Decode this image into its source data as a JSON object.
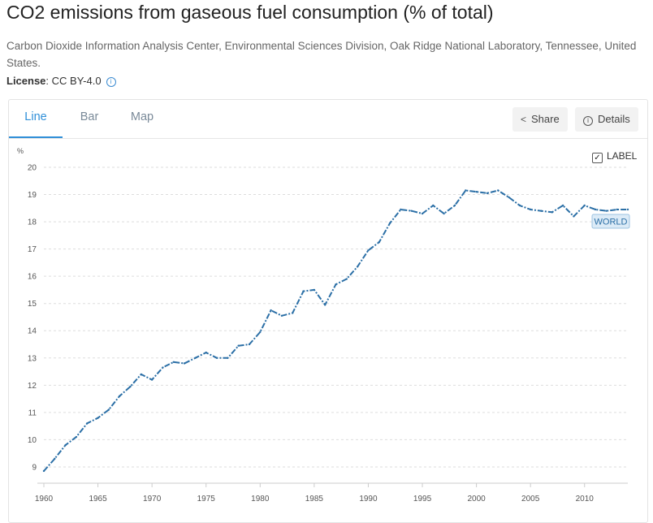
{
  "page": {
    "title": "CO2 emissions from gaseous fuel consumption (% of total)",
    "source": "Carbon Dioxide Information Analysis Center, Environmental Sciences Division, Oak Ridge National Laboratory, Tennessee, United States.",
    "license_label": "License",
    "license_value": ": CC BY-4.0"
  },
  "tabs": [
    {
      "label": "Line",
      "active": true
    },
    {
      "label": "Bar",
      "active": false
    },
    {
      "label": "Map",
      "active": false
    }
  ],
  "toolbar": {
    "share_label": "Share",
    "details_label": "Details",
    "share_icon": "share-icon",
    "details_icon": "info-icon"
  },
  "label_toggle": {
    "label": "LABEL",
    "checked": true
  },
  "colors": {
    "accent": "#2f8fd8",
    "series": "#2b6fa6",
    "grid": "#dddddd"
  },
  "chart_data": {
    "type": "line",
    "ylabel": "%",
    "xlim": [
      1960,
      2014
    ],
    "ylim": [
      8.7,
      20
    ],
    "yticks": [
      9,
      10,
      11,
      12,
      13,
      14,
      15,
      16,
      17,
      18,
      19,
      20
    ],
    "xticks": [
      1960,
      1965,
      1970,
      1975,
      1980,
      1985,
      1990,
      1995,
      2000,
      2005,
      2010
    ],
    "grid": "horizontal-dashed",
    "series": [
      {
        "name": "WORLD",
        "x": [
          1960,
          1961,
          1962,
          1963,
          1964,
          1965,
          1966,
          1967,
          1968,
          1969,
          1970,
          1971,
          1972,
          1973,
          1974,
          1975,
          1976,
          1977,
          1978,
          1979,
          1980,
          1981,
          1982,
          1983,
          1984,
          1985,
          1986,
          1987,
          1988,
          1989,
          1990,
          1991,
          1992,
          1993,
          1994,
          1995,
          1996,
          1997,
          1998,
          1999,
          2000,
          2001,
          2002,
          2003,
          2004,
          2005,
          2006,
          2007,
          2008,
          2009,
          2010,
          2011,
          2012,
          2013,
          2014
        ],
        "values": [
          8.85,
          9.3,
          9.8,
          10.1,
          10.6,
          10.8,
          11.1,
          11.6,
          11.95,
          12.4,
          12.2,
          12.65,
          12.85,
          12.8,
          13.0,
          13.2,
          13.0,
          13.0,
          13.45,
          13.5,
          13.95,
          14.75,
          14.55,
          14.65,
          15.45,
          15.5,
          14.95,
          15.7,
          15.9,
          16.35,
          16.95,
          17.25,
          17.95,
          18.45,
          18.4,
          18.3,
          18.6,
          18.3,
          18.6,
          19.15,
          19.1,
          19.05,
          19.15,
          18.9,
          18.6,
          18.45,
          18.4,
          18.35,
          18.6,
          18.2,
          18.6,
          18.45,
          18.4,
          18.45,
          18.45
        ]
      }
    ]
  }
}
